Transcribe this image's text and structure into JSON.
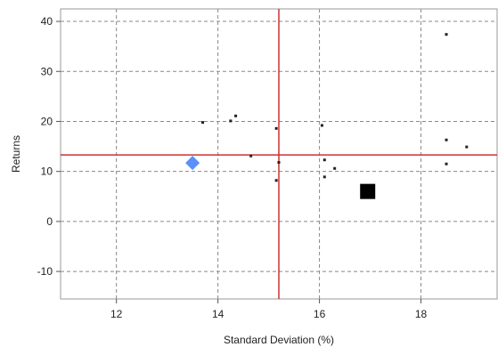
{
  "chart_data": {
    "type": "scatter",
    "title": "",
    "xlabel": "Standard Deviation (%)",
    "ylabel": "Returns",
    "xlim": [
      10.9,
      19.5
    ],
    "ylim": [
      -15.5,
      42.5
    ],
    "xticks": [
      12,
      14,
      16,
      18
    ],
    "yticks": [
      -10,
      0,
      10,
      20,
      30,
      40
    ],
    "grid": true,
    "grid_style": "dashed",
    "legend": "none",
    "points": [
      {
        "x": 13.7,
        "y": 19.8
      },
      {
        "x": 14.25,
        "y": 20.1
      },
      {
        "x": 14.35,
        "y": 21.1
      },
      {
        "x": 14.65,
        "y": 13.1
      },
      {
        "x": 15.15,
        "y": 18.6
      },
      {
        "x": 15.2,
        "y": 11.8
      },
      {
        "x": 15.15,
        "y": 8.2
      },
      {
        "x": 16.05,
        "y": 19.2
      },
      {
        "x": 16.1,
        "y": 12.3
      },
      {
        "x": 16.3,
        "y": 10.6
      },
      {
        "x": 16.1,
        "y": 8.9
      },
      {
        "x": 18.5,
        "y": 37.4
      },
      {
        "x": 18.5,
        "y": 16.3
      },
      {
        "x": 18.9,
        "y": 14.9
      },
      {
        "x": 18.5,
        "y": 11.5
      }
    ],
    "highlight_points": [
      {
        "x": 13.5,
        "y": 11.7,
        "shape": "diamond",
        "color": "#5b8ff9"
      },
      {
        "x": 16.95,
        "y": 6.0,
        "shape": "square",
        "color": "#000000"
      }
    ],
    "reference_lines": {
      "vertical_x": 15.2,
      "horizontal_y": 13.3,
      "color": "#cc3333"
    },
    "colors": {
      "point": "#222222",
      "grid": "#888888",
      "axis": "#555555"
    }
  }
}
